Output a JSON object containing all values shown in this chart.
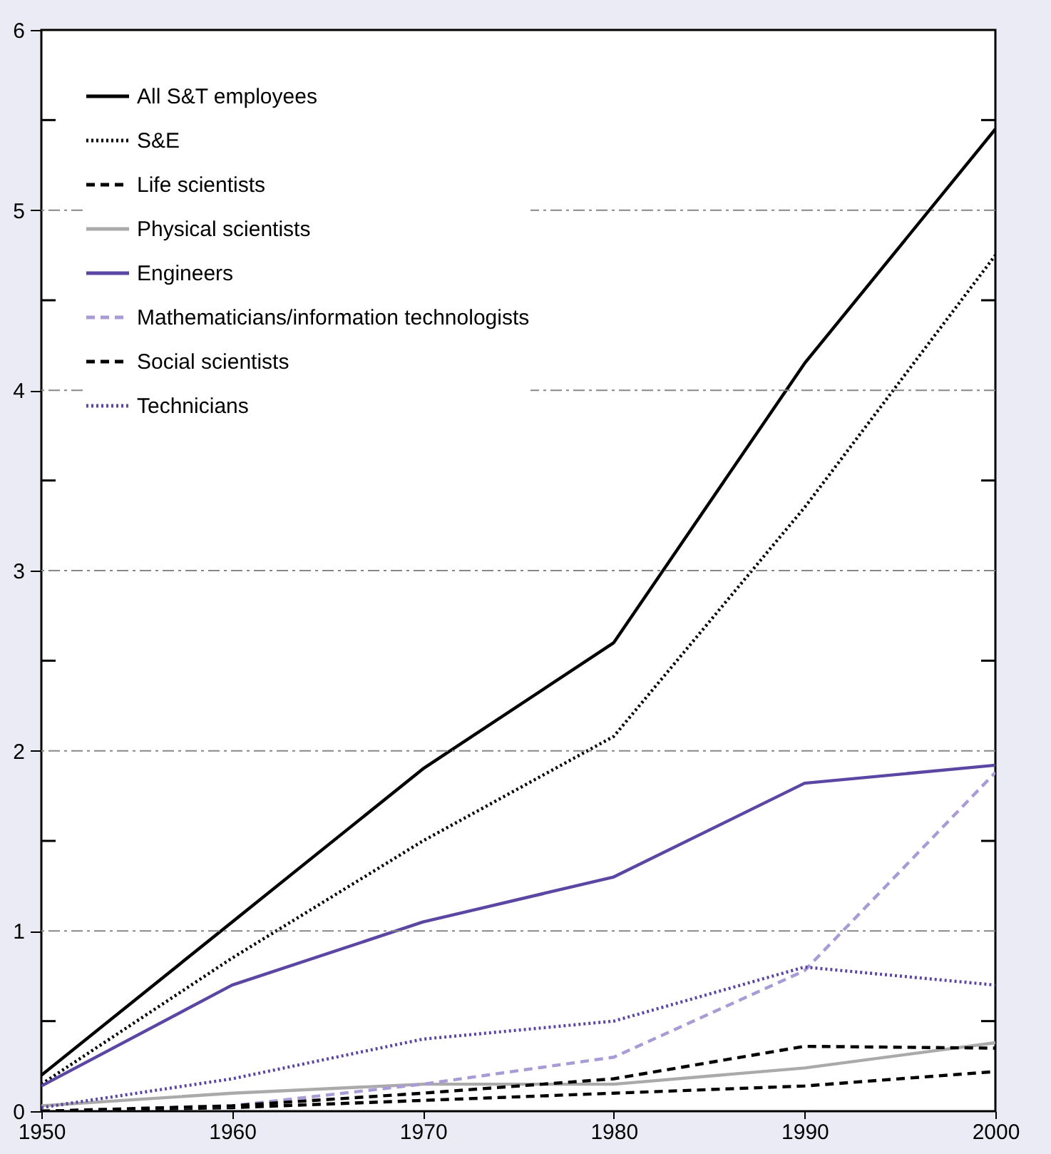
{
  "chart_data": {
    "type": "line",
    "x": [
      1950,
      1960,
      1970,
      1980,
      1990,
      2000
    ],
    "xlim": [
      1950,
      2000
    ],
    "xticks": [
      1950,
      1960,
      1970,
      1980,
      1990,
      2000
    ],
    "ylim": [
      0,
      6
    ],
    "yticks": [
      0,
      {
        "value": 0.5,
        "label": null
      },
      1,
      {
        "value": 1.5,
        "label": null
      },
      2,
      {
        "value": 2.5,
        "label": null
      },
      3,
      {
        "value": 3.5,
        "label": null
      },
      4,
      {
        "value": 4.5,
        "label": null
      },
      5,
      {
        "value": 5.5,
        "label": null
      },
      6
    ],
    "grid": "y",
    "legend": "top left",
    "series": [
      {
        "name": "All S&T employees",
        "color": "#000000",
        "line_style": "solid",
        "values": [
          0.2,
          1.05,
          1.9,
          2.6,
          4.15,
          5.45
        ]
      },
      {
        "name": "S&E",
        "color": "#000000",
        "line_style": "dotted",
        "values": [
          0.15,
          0.85,
          1.5,
          2.08,
          3.35,
          4.75
        ]
      },
      {
        "name": "Life scientists",
        "color": "#000000",
        "line_style": "dashed",
        "values": [
          0.0,
          0.02,
          0.06,
          0.1,
          0.14,
          0.22
        ]
      },
      {
        "name": "Physical scientists",
        "color": "#aaaaaa",
        "line_style": "solid",
        "values": [
          0.03,
          0.1,
          0.15,
          0.15,
          0.24,
          0.38
        ]
      },
      {
        "name": "Engineers",
        "color": "#5b46a3",
        "line_style": "solid",
        "values": [
          0.14,
          0.7,
          1.05,
          1.3,
          1.82,
          1.92
        ]
      },
      {
        "name": "Mathematicians/information technologists",
        "color": "#a89bd6",
        "line_style": "dashed",
        "values": [
          0.0,
          0.03,
          0.15,
          0.3,
          0.78,
          1.88
        ]
      },
      {
        "name": "Social scientists",
        "color": "#000000",
        "line_style": "dashed",
        "values": [
          0.0,
          0.03,
          0.1,
          0.18,
          0.36,
          0.35
        ]
      },
      {
        "name": "Technicians",
        "color": "#5b46a3",
        "line_style": "dotted",
        "values": [
          0.02,
          0.18,
          0.4,
          0.5,
          0.8,
          0.7
        ]
      }
    ]
  }
}
